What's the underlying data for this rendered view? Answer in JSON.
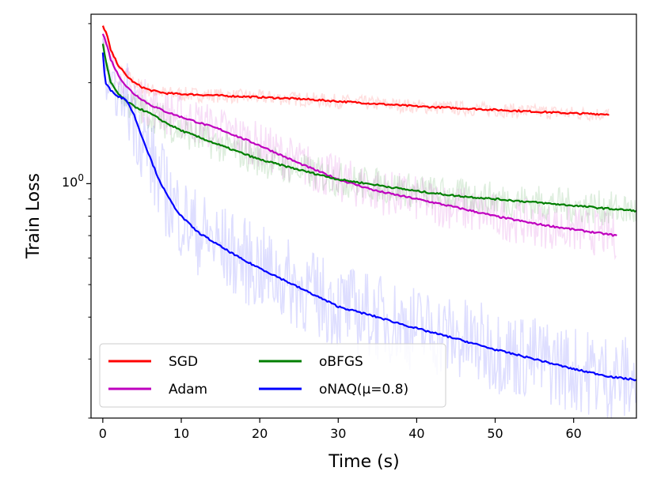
{
  "chart_data": {
    "type": "line",
    "title": "",
    "xlabel": "Time (s)",
    "ylabel": "Train Loss",
    "yscale": "log",
    "xlim": [
      -1.5,
      68
    ],
    "ylim": [
      0.2,
      3.2
    ],
    "xticks": [
      0,
      10,
      20,
      30,
      40,
      50,
      60
    ],
    "xtick_labels": [
      "0",
      "10",
      "20",
      "30",
      "40",
      "50",
      "60"
    ],
    "yticks": [
      1.0
    ],
    "ytick_labels": [
      "10^0"
    ],
    "ytick_base": "10",
    "ytick_exponent": "0",
    "grid": false,
    "legend_position": "lower-left",
    "legend_columns": 2,
    "series": [
      {
        "name": "SGD",
        "color": "#ff0000",
        "x": [
          0,
          0.5,
          1,
          2,
          3,
          4,
          5,
          6,
          8,
          10,
          15,
          20,
          25,
          30,
          35,
          40,
          45,
          50,
          55,
          60,
          64.5
        ],
        "values": [
          2.95,
          2.8,
          2.5,
          2.25,
          2.1,
          2.0,
          1.94,
          1.9,
          1.86,
          1.85,
          1.83,
          1.81,
          1.79,
          1.76,
          1.73,
          1.7,
          1.68,
          1.66,
          1.64,
          1.62,
          1.61
        ]
      },
      {
        "name": "Adam",
        "color": "#bf00bf",
        "x": [
          0,
          0.5,
          1,
          2,
          3,
          4,
          6,
          8,
          10,
          15,
          20,
          25,
          30,
          35,
          40,
          45,
          50,
          55,
          60,
          65.5
        ],
        "values": [
          2.8,
          2.6,
          2.35,
          2.1,
          1.95,
          1.85,
          1.72,
          1.64,
          1.58,
          1.45,
          1.3,
          1.15,
          1.03,
          0.95,
          0.9,
          0.85,
          0.8,
          0.76,
          0.73,
          0.7
        ]
      },
      {
        "name": "oBFGS",
        "color": "#007f00",
        "x": [
          0,
          0.5,
          1,
          2,
          3,
          4,
          6,
          8,
          10,
          15,
          20,
          25,
          30,
          35,
          40,
          45,
          50,
          55,
          60,
          65,
          68
        ],
        "values": [
          2.6,
          2.25,
          2.0,
          1.85,
          1.76,
          1.7,
          1.62,
          1.52,
          1.44,
          1.3,
          1.18,
          1.1,
          1.03,
          0.99,
          0.95,
          0.92,
          0.9,
          0.88,
          0.86,
          0.84,
          0.83
        ]
      },
      {
        "name": "oNAQ(μ=0.8)",
        "color": "#0000ff",
        "x": [
          0,
          0.3,
          1,
          2,
          3,
          4,
          5,
          6,
          7,
          8,
          9,
          10,
          12,
          15,
          18,
          20,
          25,
          30,
          35,
          40,
          45,
          50,
          55,
          60,
          65,
          68
        ],
        "values": [
          2.45,
          2.0,
          1.9,
          1.82,
          1.78,
          1.6,
          1.38,
          1.2,
          1.05,
          0.94,
          0.86,
          0.8,
          0.72,
          0.65,
          0.59,
          0.56,
          0.49,
          0.43,
          0.4,
          0.37,
          0.345,
          0.32,
          0.3,
          0.28,
          0.265,
          0.26
        ]
      }
    ]
  }
}
